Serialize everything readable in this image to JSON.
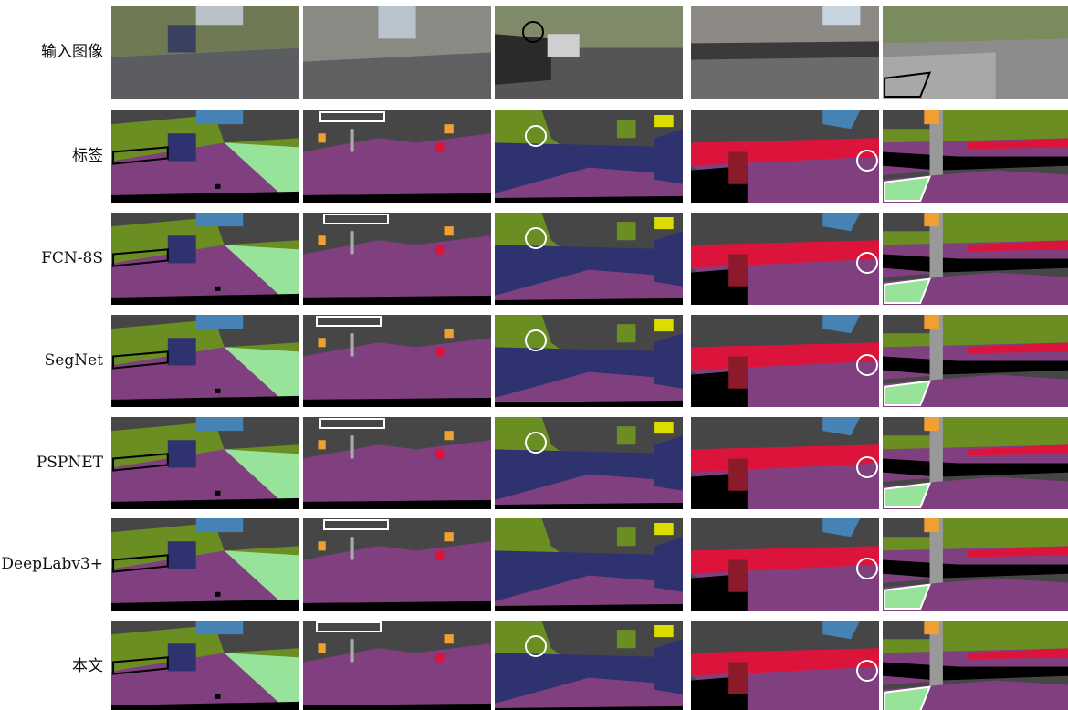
{
  "row_labels": [
    "输入图像",
    "标签",
    "FCN-8S",
    "SegNet",
    "PSPNET",
    "DeepLabv3+",
    "本文"
  ]
}
